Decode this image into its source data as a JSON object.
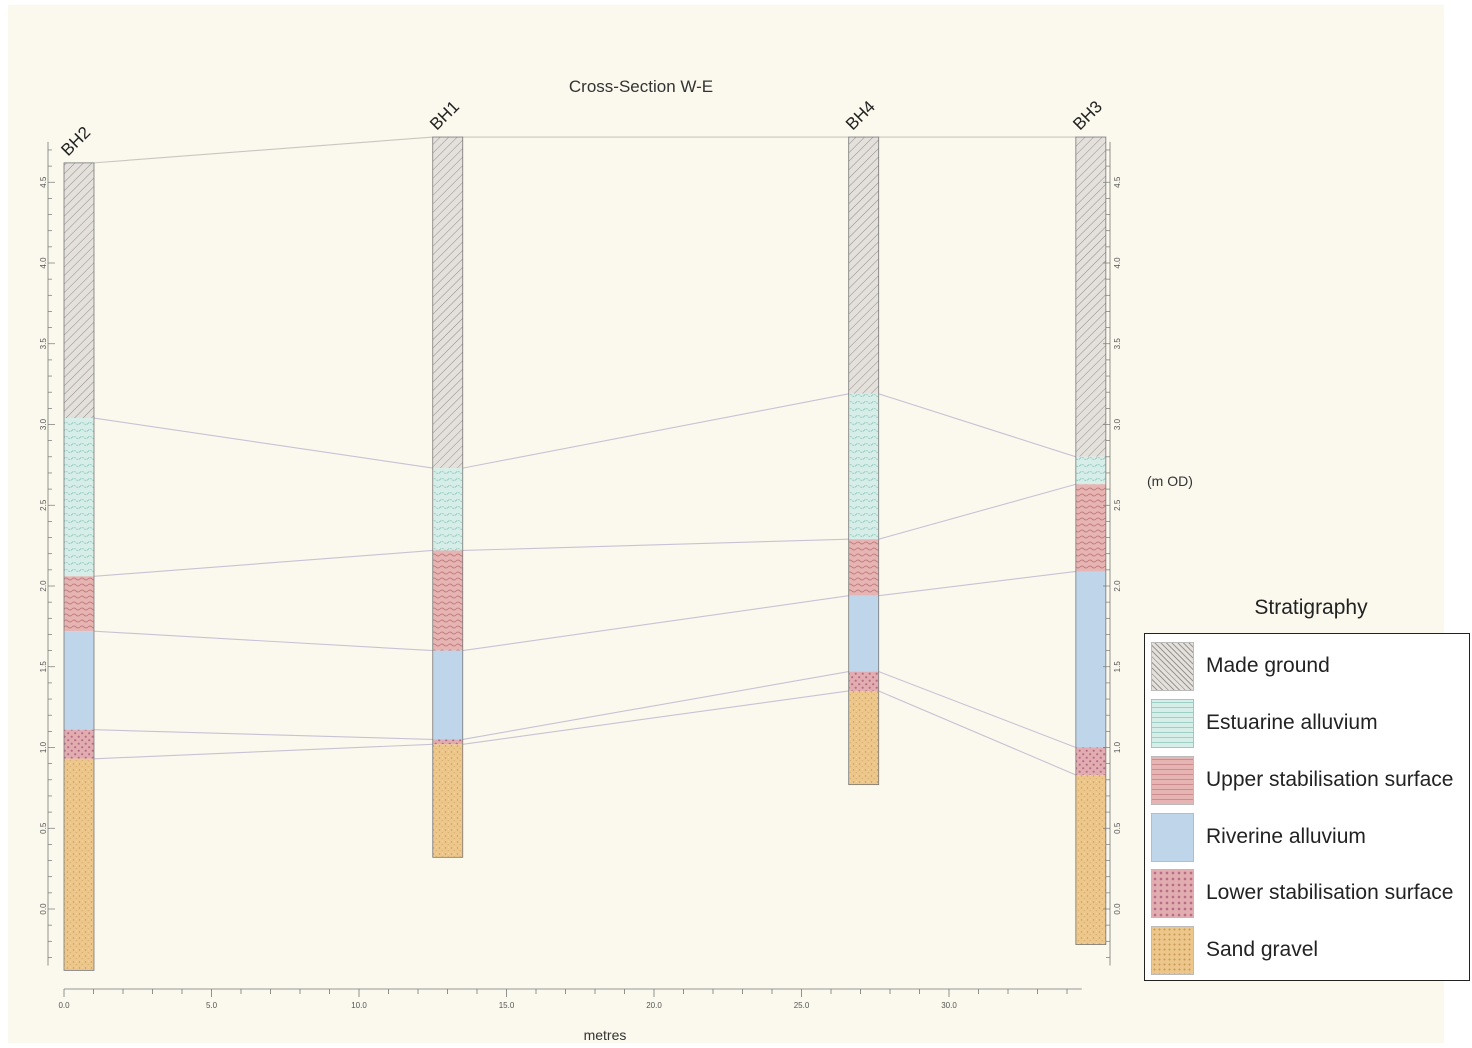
{
  "chart_data": {
    "type": "cross-section",
    "title": "Cross-Section W-E",
    "xlabel": "metres",
    "ylabel": "(m OD)",
    "xlim": [
      0,
      34.5
    ],
    "ylim": [
      -0.4,
      4.8
    ],
    "x_ticks": [
      "0.0",
      "5.0",
      "10.0",
      "15.0",
      "20.0",
      "25.0",
      "30.0"
    ],
    "y_ticks": [
      "0.0",
      "0.5",
      "1.0",
      "1.5",
      "2.0",
      "2.5",
      "3.0",
      "3.5",
      "4.0",
      "4.5"
    ],
    "legend_title": "Stratigraphy",
    "units": [
      {
        "key": "made_ground",
        "name": "Made ground",
        "color": "#e4e1dd"
      },
      {
        "key": "estuarine",
        "name": "Estuarine alluvium",
        "color": "#d6ede8"
      },
      {
        "key": "upper_ss",
        "name": "Upper stabilisation surface",
        "color": "#e6b5b3"
      },
      {
        "key": "riverine",
        "name": "Riverine alluvium",
        "color": "#bfd5ea"
      },
      {
        "key": "lower_ss",
        "name": "Lower stabilisation surface",
        "color": "#dfa3a8"
      },
      {
        "key": "sand_gravel",
        "name": "Sand gravel",
        "color": "#ecc68a"
      }
    ],
    "boreholes": [
      {
        "name": "BH2",
        "x": 0.0,
        "top": 4.62,
        "contacts": [
          3.04,
          2.06,
          1.72,
          1.11,
          0.93
        ],
        "base": -0.38
      },
      {
        "name": "BH1",
        "x": 12.5,
        "top": 4.78,
        "contacts": [
          2.73,
          2.22,
          1.6,
          1.05,
          1.02
        ],
        "base": 0.32
      },
      {
        "name": "BH4",
        "x": 26.6,
        "top": 4.78,
        "contacts": [
          3.19,
          2.29,
          1.94,
          1.47,
          1.35
        ],
        "base": 0.77
      },
      {
        "name": "BH3",
        "x": 34.3,
        "top": 4.78,
        "contacts": [
          2.8,
          2.63,
          2.09,
          1.0,
          0.83
        ],
        "base": -0.22
      }
    ]
  }
}
